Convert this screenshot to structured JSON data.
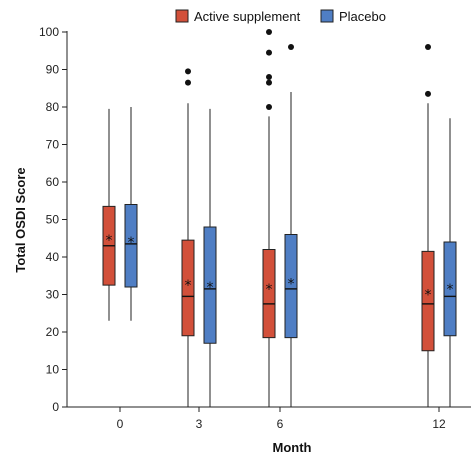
{
  "chart_data": {
    "type": "box",
    "xlabel": "Month",
    "ylabel": "Total OSDI Score",
    "ylim": [
      0,
      100
    ],
    "yticks": [
      0,
      10,
      20,
      30,
      40,
      50,
      60,
      70,
      80,
      90,
      100
    ],
    "categories": [
      "0",
      "3",
      "6",
      "12"
    ],
    "legend_position": "top",
    "series": [
      {
        "name": "Active supplement",
        "color": "#d2503a",
        "boxes": [
          {
            "x": "0",
            "min": 23,
            "q1": 32.5,
            "median": 43,
            "q3": 53.5,
            "max": 79.5,
            "mean": 44.5,
            "outliers": []
          },
          {
            "x": "3",
            "min": 0,
            "q1": 19,
            "median": 29.5,
            "q3": 44.5,
            "max": 81,
            "mean": 32.5,
            "outliers": [
              86.5,
              89.5
            ]
          },
          {
            "x": "6",
            "min": 0,
            "q1": 18.5,
            "median": 27.5,
            "q3": 42,
            "max": 77.5,
            "mean": 31.5,
            "outliers": [
              80,
              86.5,
              88,
              94.5,
              100
            ]
          },
          {
            "x": "12",
            "min": 0,
            "q1": 15,
            "median": 27.5,
            "q3": 41.5,
            "max": 81,
            "mean": 30,
            "outliers": [
              83.5,
              96
            ]
          }
        ]
      },
      {
        "name": "Placebo",
        "color": "#4f7ec4",
        "boxes": [
          {
            "x": "0",
            "min": 23,
            "q1": 32,
            "median": 43.5,
            "q3": 54,
            "max": 80,
            "mean": 44,
            "outliers": []
          },
          {
            "x": "3",
            "min": 0,
            "q1": 17,
            "median": 31.5,
            "q3": 48,
            "max": 79.5,
            "mean": 32,
            "outliers": []
          },
          {
            "x": "6",
            "min": 0,
            "q1": 18.5,
            "median": 31.5,
            "q3": 46,
            "max": 84,
            "mean": 33,
            "outliers": [
              96
            ]
          },
          {
            "x": "12",
            "min": 0,
            "q1": 19,
            "median": 29.5,
            "q3": 44,
            "max": 77,
            "mean": 31.5,
            "outliers": []
          }
        ]
      }
    ]
  }
}
